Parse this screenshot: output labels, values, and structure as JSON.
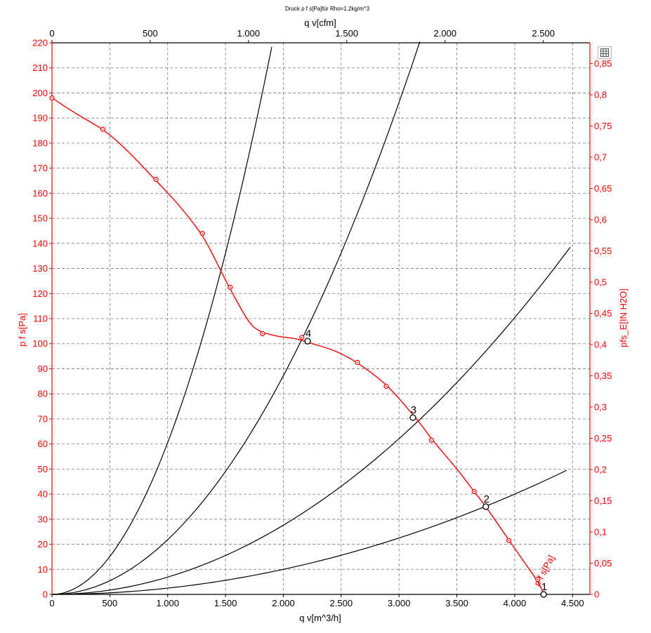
{
  "chart_data": {
    "type": "line",
    "title": "Druck p f s[Pa]für Rho=1,2kg/m^3",
    "xlabel": "q v[m^3/h]",
    "x2label": "q v[cfm]",
    "ylabel": "p f s[Pa]",
    "y2label": "pfs_E[IN H2O]",
    "xlim": [
      0,
      4650
    ],
    "ylim": [
      0,
      220
    ],
    "x_ticks": [
      0,
      500,
      1000,
      1500,
      2000,
      2500,
      3000,
      3500,
      4000,
      4500
    ],
    "x_tick_labels": [
      "0",
      "500",
      "1.000",
      "1.500",
      "2.000",
      "2.500",
      "3.000",
      "3.500",
      "4.000",
      "4.500"
    ],
    "y_ticks": [
      0,
      10,
      20,
      30,
      40,
      50,
      60,
      70,
      80,
      90,
      100,
      110,
      120,
      130,
      140,
      150,
      160,
      170,
      180,
      190,
      200,
      210,
      220
    ],
    "x2_ticks": [
      0,
      500,
      1000,
      1500,
      2000,
      2500
    ],
    "x2_tick_labels": [
      "0",
      "500",
      "1.000",
      "1.500",
      "2.000",
      "2.500"
    ],
    "y2_ticks": [
      0,
      0.05,
      0.1,
      0.15,
      0.2,
      0.25,
      0.3,
      0.35,
      0.4,
      0.45,
      0.5,
      0.55,
      0.6,
      0.65,
      0.7,
      0.75,
      0.8,
      0.85
    ],
    "y2_tick_labels": [
      "0",
      "0,05",
      "0,1",
      "0,15",
      "0,2",
      "0,25",
      "0,3",
      "0,35",
      "0,4",
      "0,45",
      "0,5",
      "0,55",
      "0,6",
      "0,65",
      "0,7",
      "0,75",
      "0,8",
      "0,85"
    ],
    "grid": true,
    "curve_color": "#ff0000",
    "system_color": "#000000",
    "fan_curve": {
      "name": "p f s[Pa]",
      "x": [
        0,
        200,
        450,
        650,
        900,
        1100,
        1300,
        1450,
        1550,
        1700,
        1800,
        1950,
        2100,
        2250,
        2450,
        2650,
        2900,
        3150,
        3300,
        3500,
        3650,
        3750,
        3900,
        4050,
        4200,
        4250
      ],
      "y": [
        198,
        192,
        185,
        177,
        165,
        155,
        143,
        130,
        121,
        109,
        105,
        103,
        102,
        100,
        97,
        92,
        83,
        70,
        61,
        50,
        41,
        35,
        25,
        15,
        5,
        0
      ]
    },
    "measured_points": {
      "x": [
        0,
        440,
        900,
        1300,
        1540,
        1820,
        2160,
        2640,
        2890,
        3280,
        3650,
        3950,
        4200
      ],
      "y": [
        198,
        185.5,
        165.5,
        144,
        122.5,
        104,
        102.5,
        92.5,
        83,
        61.5,
        41,
        21.5,
        6
      ]
    },
    "system_curves": [
      {
        "k": 2.5e-06,
        "x_end": 4450
      },
      {
        "k": 6.9e-06,
        "x_end": 4480
      },
      {
        "k": 2.18e-05,
        "x_end": 3180
      },
      {
        "k": 6.05e-05,
        "x_end": 1900
      }
    ],
    "operating_points": [
      {
        "label": "1",
        "x": 4250,
        "y": 0
      },
      {
        "label": "2",
        "x": 3750,
        "y": 35
      },
      {
        "label": "3",
        "x": 3120,
        "y": 70.5
      },
      {
        "label": "4",
        "x": 2210,
        "y": 101
      }
    ],
    "curve_label": "p f s[Pa]"
  }
}
